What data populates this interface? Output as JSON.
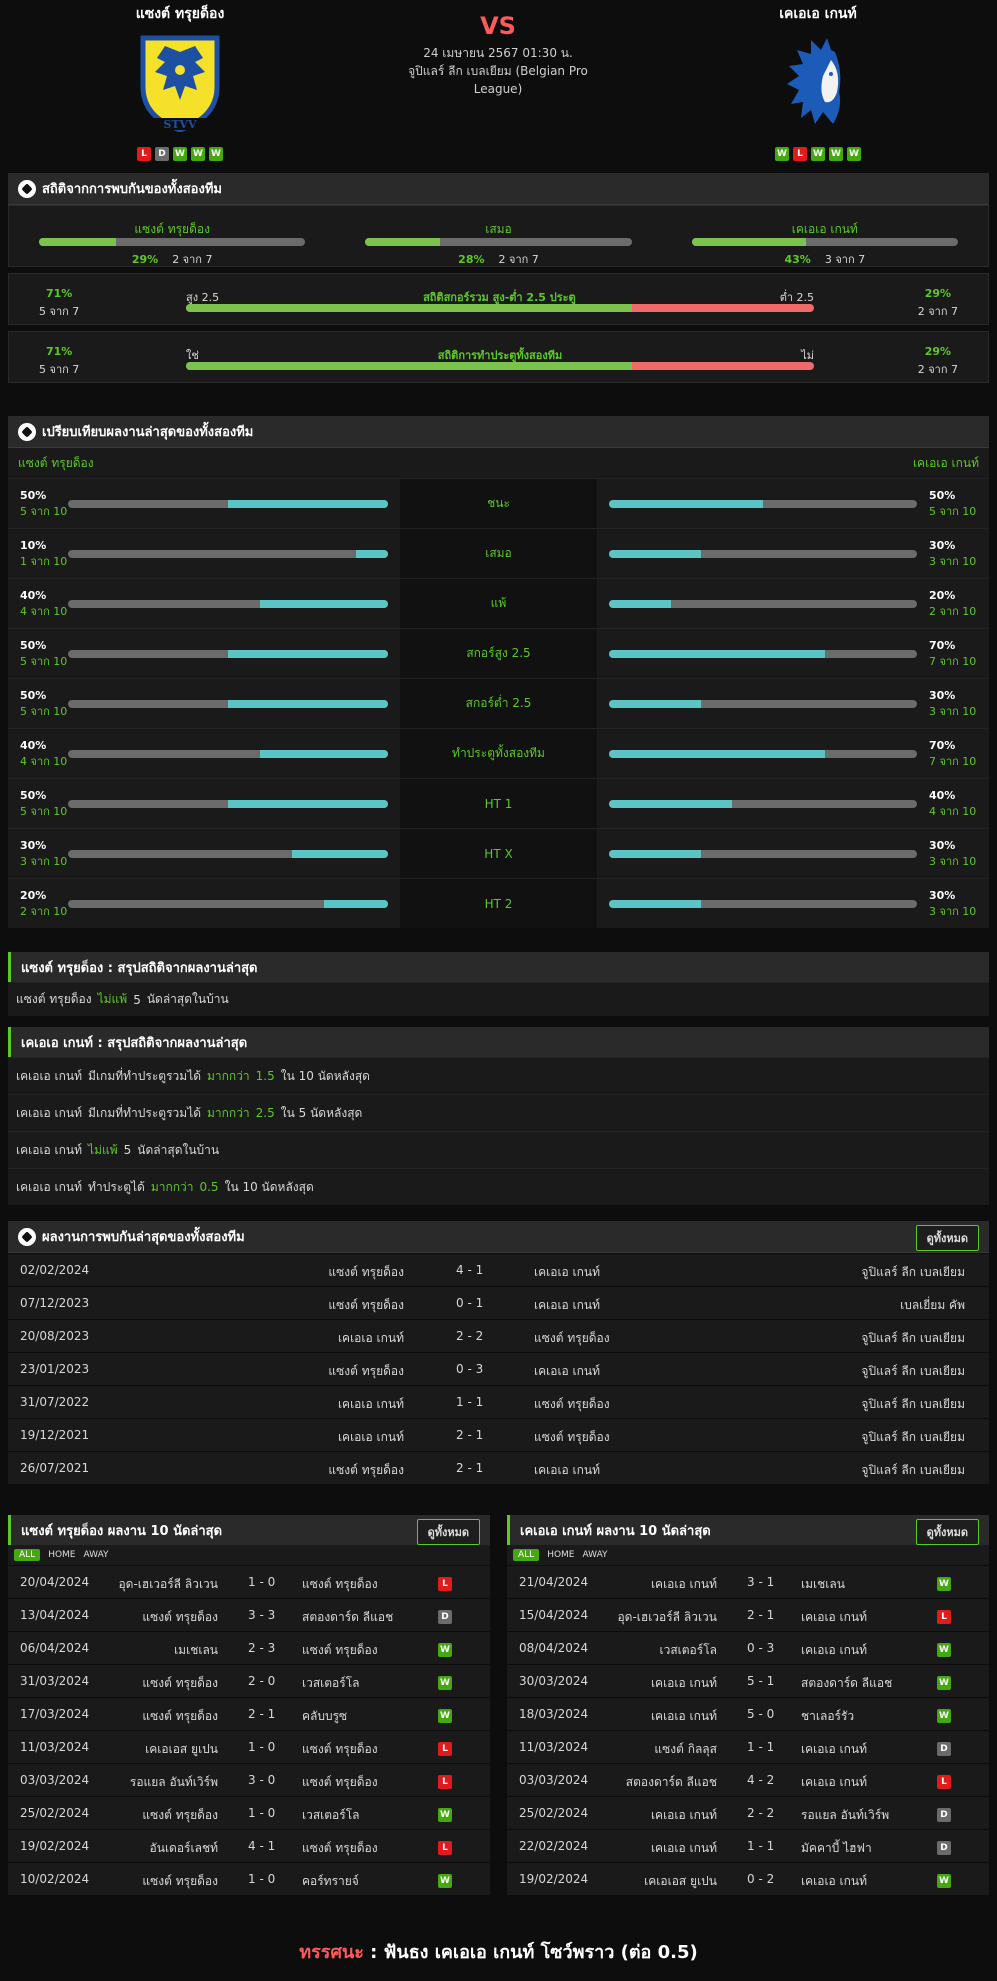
{
  "header": {
    "home": {
      "name": "แซงต์ ทรุยด็อง",
      "form": [
        "L",
        "D",
        "W",
        "W",
        "W"
      ]
    },
    "away": {
      "name": "เคเอเอ เกนท์",
      "form": [
        "W",
        "L",
        "W",
        "W",
        "W"
      ]
    },
    "vs": "VS",
    "datetime": "24 เมษายน 2567 01:30 น.",
    "league": "จูปิแลร์ ลีก เบลเยียม (Belgian Pro League)"
  },
  "h2h_stats": {
    "title": "สถิติจากการพบกันของทั้งสองทีม",
    "cols": [
      {
        "label": "แซงต์ ทรุยด็อง",
        "pct": "29%",
        "count": "2 จาก 7",
        "value": 0.29
      },
      {
        "label": "เสมอ",
        "pct": "28%",
        "count": "2 จาก 7",
        "value": 0.28
      },
      {
        "label": "เคเอเอ เกนท์",
        "pct": "43%",
        "count": "3 จาก 7",
        "value": 0.43
      }
    ],
    "ou": {
      "left_pct": "71%",
      "left_count": "5 จาก 7",
      "left_label": "สูง 2.5",
      "center": "สถิติสกอร์รวม สูง-ต่ำ 2.5 ประตู",
      "right_label": "ต่ำ 2.5",
      "right_pct": "29%",
      "right_count": "2 จาก 7",
      "value": 0.71
    },
    "btts": {
      "left_pct": "71%",
      "left_count": "5 จาก 7",
      "left_label": "ใช่",
      "center": "สถิติการทำประตูทั้งสองทีม",
      "right_label": "ไม่",
      "right_pct": "29%",
      "right_count": "2 จาก 7",
      "value": 0.71
    }
  },
  "compare": {
    "title": "เปรียบเทียบผลงานล่าสุดของทั้งสองทีม",
    "home": "แซงต์ ทรุยด็อง",
    "away": "เคเอเอ เกนท์",
    "rows": [
      {
        "label": "ชนะ",
        "hp": "50%",
        "hc": "5 จาก 10",
        "hv": 0.5,
        "ap": "50%",
        "ac": "5 จาก 10",
        "av": 0.5
      },
      {
        "label": "เสมอ",
        "hp": "10%",
        "hc": "1 จาก 10",
        "hv": 0.1,
        "ap": "30%",
        "ac": "3 จาก 10",
        "av": 0.3
      },
      {
        "label": "แพ้",
        "hp": "40%",
        "hc": "4 จาก 10",
        "hv": 0.4,
        "ap": "20%",
        "ac": "2 จาก 10",
        "av": 0.2
      },
      {
        "label": "สกอร์สูง 2.5",
        "hp": "50%",
        "hc": "5 จาก 10",
        "hv": 0.5,
        "ap": "70%",
        "ac": "7 จาก 10",
        "av": 0.7
      },
      {
        "label": "สกอร์ต่ำ 2.5",
        "hp": "50%",
        "hc": "5 จาก 10",
        "hv": 0.5,
        "ap": "30%",
        "ac": "3 จาก 10",
        "av": 0.3
      },
      {
        "label": "ทำประตูทั้งสองทีม",
        "hp": "40%",
        "hc": "4 จาก 10",
        "hv": 0.4,
        "ap": "70%",
        "ac": "7 จาก 10",
        "av": 0.7
      },
      {
        "label": "HT 1",
        "hp": "50%",
        "hc": "5 จาก 10",
        "hv": 0.5,
        "ap": "40%",
        "ac": "4 จาก 10",
        "av": 0.4
      },
      {
        "label": "HT X",
        "hp": "30%",
        "hc": "3 จาก 10",
        "hv": 0.3,
        "ap": "30%",
        "ac": "3 จาก 10",
        "av": 0.3
      },
      {
        "label": "HT 2",
        "hp": "20%",
        "hc": "2 จาก 10",
        "hv": 0.2,
        "ap": "30%",
        "ac": "3 จาก 10",
        "av": 0.3
      }
    ]
  },
  "summary_home": {
    "title": "แซงต์ ทรุยด็อง : สรุปสถิติจากผลงานล่าสุด",
    "rows": [
      [
        "แซงต์ ทรุยด็อง",
        "ไม่แพ้",
        "5",
        "นัดล่าสุดในบ้าน"
      ]
    ]
  },
  "summary_away": {
    "title": "เคเอเอ เกนท์ : สรุปสถิติจากผลงานล่าสุด",
    "rows": [
      [
        "เคเอเอ เกนท์",
        "มีเกมที่ทำประตูรวมได้",
        "มากกว่า",
        "1.5",
        "ใน 10 นัดหลังสุด"
      ],
      [
        "เคเอเอ เกนท์",
        "มีเกมที่ทำประตูรวมได้",
        "มากกว่า",
        "2.5",
        "ใน 5 นัดหลังสุด"
      ],
      [
        "เคเอเอ เกนท์",
        "ไม่แพ้",
        "5",
        "นัดล่าสุดในบ้าน"
      ],
      [
        "เคเอเอ เกนท์",
        "ทำประตูได้",
        "มากกว่า",
        "0.5",
        "ใน 10 นัดหลังสุด"
      ]
    ]
  },
  "h2h_list": {
    "title": "ผลงานการพบกันล่าสุดของทั้งสองทีม",
    "view_all": "ดูทั้งหมด",
    "rows": [
      [
        "02/02/2024",
        "แซงต์ ทรุยด็อง",
        "4 - 1",
        "เคเอเอ เกนท์",
        "จูปิแลร์ ลีก เบลเยียม"
      ],
      [
        "07/12/2023",
        "แซงต์ ทรุยด็อง",
        "0 - 1",
        "เคเอเอ เกนท์",
        "เบลเยี่ยม คัพ"
      ],
      [
        "20/08/2023",
        "เคเอเอ เกนท์",
        "2 - 2",
        "แซงต์ ทรุยด็อง",
        "จูปิแลร์ ลีก เบลเยียม"
      ],
      [
        "23/01/2023",
        "แซงต์ ทรุยด็อง",
        "0 - 3",
        "เคเอเอ เกนท์",
        "จูปิแลร์ ลีก เบลเยียม"
      ],
      [
        "31/07/2022",
        "เคเอเอ เกนท์",
        "1 - 1",
        "แซงต์ ทรุยด็อง",
        "จูปิแลร์ ลีก เบลเยียม"
      ],
      [
        "19/12/2021",
        "เคเอเอ เกนท์",
        "2 - 1",
        "แซงต์ ทรุยด็อง",
        "จูปิแลร์ ลีก เบลเยียม"
      ],
      [
        "26/07/2021",
        "แซงต์ ทรุยด็อง",
        "2 - 1",
        "เคเอเอ เกนท์",
        "จูปิแลร์ ลีก เบลเยียม"
      ]
    ]
  },
  "last10_home": {
    "title": "แซงต์ ทรุยด็อง ผลงาน 10 นัดล่าสุด",
    "view_all": "ดูทั้งหมด",
    "tabs": [
      "ALL",
      "HOME",
      "AWAY"
    ],
    "rows": [
      [
        "20/04/2024",
        "อุด-เฮเวอร์ลี ลิวเวน",
        "1 - 0",
        "แซงต์ ทรุยด็อง",
        "L"
      ],
      [
        "13/04/2024",
        "แซงต์ ทรุยด็อง",
        "3 - 3",
        "สตองดาร์ด ลีแอช",
        "D"
      ],
      [
        "06/04/2024",
        "เมเชเลน",
        "2 - 3",
        "แซงต์ ทรุยด็อง",
        "W"
      ],
      [
        "31/03/2024",
        "แซงต์ ทรุยด็อง",
        "2 - 0",
        "เวสเตอร์โล",
        "W"
      ],
      [
        "17/03/2024",
        "แซงต์ ทรุยด็อง",
        "2 - 1",
        "คลับบรูซ",
        "W"
      ],
      [
        "11/03/2024",
        "เคเอเอส ยูเปน",
        "1 - 0",
        "แซงต์ ทรุยด็อง",
        "L"
      ],
      [
        "03/03/2024",
        "รอแยล อันท์เวิร์พ",
        "3 - 0",
        "แซงต์ ทรุยด็อง",
        "L"
      ],
      [
        "25/02/2024",
        "แซงต์ ทรุยด็อง",
        "1 - 0",
        "เวสเตอร์โล",
        "W"
      ],
      [
        "19/02/2024",
        "อันเดอร์เลชท์",
        "4 - 1",
        "แซงต์ ทรุยด็อง",
        "L"
      ],
      [
        "10/02/2024",
        "แซงต์ ทรุยด็อง",
        "1 - 0",
        "คอร์ทรายจ์",
        "W"
      ]
    ]
  },
  "last10_away": {
    "title": "เคเอเอ เกนท์ ผลงาน 10 นัดล่าสุด",
    "view_all": "ดูทั้งหมด",
    "tabs": [
      "ALL",
      "HOME",
      "AWAY"
    ],
    "rows": [
      [
        "21/04/2024",
        "เคเอเอ เกนท์",
        "3 - 1",
        "เมเชเลน",
        "W"
      ],
      [
        "15/04/2024",
        "อุด-เฮเวอร์ลี ลิวเวน",
        "2 - 1",
        "เคเอเอ เกนท์",
        "L"
      ],
      [
        "08/04/2024",
        "เวสเตอร์โล",
        "0 - 3",
        "เคเอเอ เกนท์",
        "W"
      ],
      [
        "30/03/2024",
        "เคเอเอ เกนท์",
        "5 - 1",
        "สตองดาร์ด ลีแอช",
        "W"
      ],
      [
        "18/03/2024",
        "เคเอเอ เกนท์",
        "5 - 0",
        "ชาเลอร์รัว",
        "W"
      ],
      [
        "11/03/2024",
        "แซงต์ กิลลุส",
        "1 - 1",
        "เคเอเอ เกนท์",
        "D"
      ],
      [
        "03/03/2024",
        "สตองดาร์ด ลีแอช",
        "4 - 2",
        "เคเอเอ เกนท์",
        "L"
      ],
      [
        "25/02/2024",
        "เคเอเอ เกนท์",
        "2 - 2",
        "รอแยล อันท์เวิร์พ",
        "D"
      ],
      [
        "22/02/2024",
        "เคเอเอ เกนท์",
        "1 - 1",
        "มัคคาบี้ ไฮฟา",
        "D"
      ],
      [
        "19/02/2024",
        "เคเอเอส ยูเปน",
        "0 - 2",
        "เคเอเอ เกนท์",
        "W"
      ]
    ]
  },
  "verdict": {
    "label": "ทรรศนะ",
    "sep": ":",
    "text": "ฟันธง เคเอเอ เกนท์ โซว์พราว (ต่อ 0.5)"
  }
}
